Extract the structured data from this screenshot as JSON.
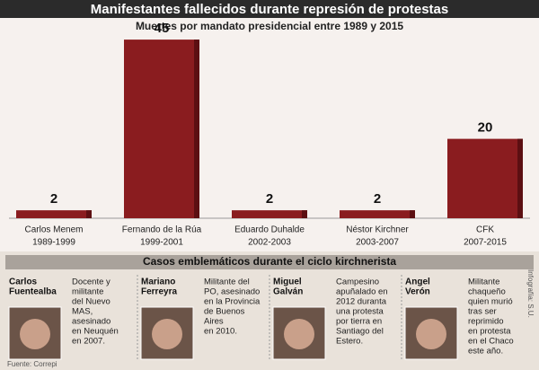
{
  "chart_data": {
    "type": "bar",
    "title": "Manifestantes fallecidos durante represión de protestas",
    "subtitle": "Muertes por mandato presidencial entre 1989 y 2015",
    "categories": [
      "Carlos Menem",
      "Fernando de la Rúa",
      "Eduardo Duhalde",
      "Néstor Kirchner",
      "CFK"
    ],
    "periods": [
      "1989-1999",
      "1999-2001",
      "2002-2003",
      "2003-2007",
      "2007-2015"
    ],
    "values": [
      2,
      45,
      2,
      2,
      20
    ],
    "color": "#8a1c1f",
    "ylim": [
      0,
      50
    ]
  },
  "cases": {
    "title": "Casos emblemáticos durante el ciclo kirchnerista",
    "items": [
      {
        "name": [
          "Carlos",
          "Fuentealba"
        ],
        "description": [
          "Docente y",
          "militante",
          "del Nuevo",
          "MAS,",
          "asesinado",
          "en Neuquén",
          "en 2007."
        ]
      },
      {
        "name": [
          "Mariano",
          "Ferreyra"
        ],
        "description": [
          "Militante del",
          "PO, asesinado",
          "en la Provincia",
          "de Buenos",
          "Aires",
          "en 2010."
        ]
      },
      {
        "name": [
          "Miguel",
          "Galván"
        ],
        "description": [
          "Campesino",
          "apuñalado en",
          "2012 duranta",
          "una protesta",
          "por tierra en",
          "Santiago del",
          "Estero."
        ]
      },
      {
        "name": [
          "Angel",
          "Verón"
        ],
        "description": [
          "Militante",
          "chaqueño",
          "quien murió",
          "tras ser",
          "reprimido",
          "en protesta",
          "en el Chaco",
          "este año."
        ]
      }
    ]
  },
  "source": "Fuente: Correpi",
  "credit": "Infografía: S.U."
}
